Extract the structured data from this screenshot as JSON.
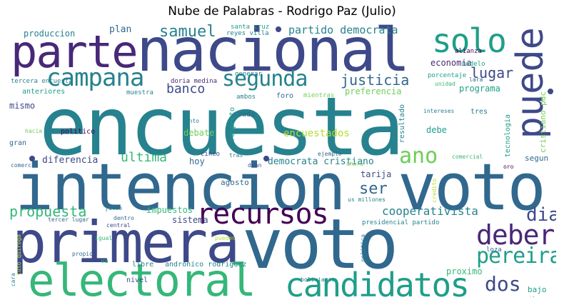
{
  "title": "Nube de Palabras - Rodrigo Paz (Julio)",
  "colors": {
    "dark_purple": "#440154",
    "purple": "#482878",
    "indigo": "#3e4989",
    "blue": "#31688e",
    "teal_blue": "#26828e",
    "teal": "#1f9e89",
    "green_teal": "#35b779",
    "green": "#6ece58",
    "lime": "#b5de2b",
    "yellow": "#fde725"
  },
  "words": [
    {
      "text": "encuesta",
      "color": "#26828e"
    },
    {
      "text": "intencion",
      "color": "#31688e"
    },
    {
      "text": "voto",
      "color": "#31688e"
    },
    {
      "text": "primera",
      "color": "#3e4989"
    },
    {
      "text": "voto",
      "color": "#31688e"
    },
    {
      "text": "nacional",
      "color": "#3e4989"
    },
    {
      "text": "parte",
      "color": "#482878"
    },
    {
      "text": "electoral",
      "color": "#35b779"
    },
    {
      "text": "candidatos",
      "color": "#1f9e89"
    },
    {
      "text": "puede",
      "color": "#3e4989"
    },
    {
      "text": "solo",
      "color": "#1f9e89"
    },
    {
      "text": "recursos",
      "color": "#440154"
    },
    {
      "text": "campana",
      "color": "#26828e"
    },
    {
      "text": "deber",
      "color": "#482878"
    },
    {
      "text": "segunda",
      "color": "#26828e"
    },
    {
      "text": "pereira",
      "color": "#1f9e89"
    },
    {
      "text": "ano",
      "color": "#6ece58"
    },
    {
      "text": "dos",
      "color": "#3e4989"
    },
    {
      "text": "dia",
      "color": "#3e4989"
    },
    {
      "text": "propuesta",
      "color": "#35b779"
    },
    {
      "text": "justicia",
      "color": "#31688e"
    },
    {
      "text": "samuel",
      "color": "#26828e"
    },
    {
      "text": "banco",
      "color": "#3e4989"
    },
    {
      "text": "lugar",
      "color": "#3e4989"
    },
    {
      "text": "ultima",
      "color": "#35b779"
    },
    {
      "text": "ser",
      "color": "#31688e"
    },
    {
      "text": "cooperativista",
      "color": "#26828e"
    },
    {
      "text": "partido democrata",
      "color": "#26828e"
    },
    {
      "text": "democrata cristiano",
      "color": "#26828e"
    },
    {
      "text": "encuestados",
      "color": "#b5de2b"
    },
    {
      "text": "preferencia",
      "color": "#6ece58"
    },
    {
      "text": "programa",
      "color": "#1f9e89"
    },
    {
      "text": "economia",
      "color": "#482878"
    },
    {
      "text": "produccion",
      "color": "#26828e"
    },
    {
      "text": "plan",
      "color": "#31688e"
    },
    {
      "text": "mismo",
      "color": "#3e4989"
    },
    {
      "text": "diferencia",
      "color": "#3e4989"
    },
    {
      "text": "hoy",
      "color": "#31688e"
    },
    {
      "text": "debate",
      "color": "#6ece58"
    },
    {
      "text": "impuestos",
      "color": "#35b779"
    },
    {
      "text": "sistema",
      "color": "#3e4989"
    },
    {
      "text": "agosto",
      "color": "#31688e"
    },
    {
      "text": "tarija",
      "color": "#3e4989"
    },
    {
      "text": "debe",
      "color": "#1f9e89"
    },
    {
      "text": "proximo",
      "color": "#35b779"
    },
    {
      "text": "bajo",
      "color": "#1f9e89"
    },
    {
      "text": "segun",
      "color": "#31688e"
    },
    {
      "text": "tres",
      "color": "#26828e"
    },
    {
      "text": "cristiano pdc",
      "color": "#6ece58"
    },
    {
      "text": "tecnologia",
      "color": "#1f9e89"
    },
    {
      "text": "resultado",
      "color": "#26828e"
    },
    {
      "text": "respecto",
      "color": "#1f9e89"
    },
    {
      "text": "rada",
      "color": "#31688e"
    },
    {
      "text": "ambos",
      "color": "#26828e"
    },
    {
      "text": "foro",
      "color": "#31688e"
    },
    {
      "text": "mientras",
      "color": "#6ece58"
    },
    {
      "text": "politico",
      "color": "#440154"
    },
    {
      "text": "anteriores",
      "color": "#1f9e89"
    },
    {
      "text": "tercera encuesta",
      "color": "#26828e"
    },
    {
      "text": "muestra",
      "color": "#26828e"
    },
    {
      "text": "doria medina",
      "color": "#482878"
    },
    {
      "text": "generar",
      "color": "#26828e"
    },
    {
      "text": "santa cruz",
      "color": "#1f9e89"
    },
    {
      "text": "reyes villa",
      "color": "#26828e"
    },
    {
      "text": "modelo",
      "color": "#1f9e89"
    },
    {
      "text": "alianza",
      "color": "#440154"
    },
    {
      "text": "porcentaje",
      "color": "#1f9e89"
    },
    {
      "text": "unidad",
      "color": "#35b779"
    },
    {
      "text": "lara",
      "color": "#31688e"
    },
    {
      "text": "intereses",
      "color": "#26828e"
    },
    {
      "text": "gran",
      "color": "#31688e"
    },
    {
      "text": "hacia",
      "color": "#6ece58"
    },
    {
      "text": "junto",
      "color": "#26828e"
    },
    {
      "text": "cinco",
      "color": "#3e4989"
    },
    {
      "text": "tras",
      "color": "#26828e"
    },
    {
      "text": "ejemplo",
      "color": "#31688e"
    },
    {
      "text": "ahora",
      "color": "#6ece58"
    },
    {
      "text": "dunn",
      "color": "#3e4989"
    },
    {
      "text": "comercio",
      "color": "#31688e"
    },
    {
      "text": "comercial",
      "color": "#35b779"
    },
    {
      "text": "credito",
      "color": "#b5de2b"
    },
    {
      "text": "oro",
      "color": "#440154"
    },
    {
      "text": "us millones",
      "color": "#26828e"
    },
    {
      "text": "julio",
      "color": "#26828e"
    },
    {
      "text": "dentro",
      "color": "#31688e"
    },
    {
      "text": "central",
      "color": "#3e4989"
    },
    {
      "text": "tercer lugar",
      "color": "#31688e"
    },
    {
      "text": "presidencial partido",
      "color": "#26828e"
    },
    {
      "text": "igual",
      "color": "#35b779"
    },
    {
      "text": "propio",
      "color": "#31688e"
    },
    {
      "text": "pueden",
      "color": "#b5de2b"
    },
    {
      "text": "va",
      "color": "#35b779"
    },
    {
      "text": "libre",
      "color": "#26828e"
    },
    {
      "text": "andronico rodriguez",
      "color": "#26828e"
    },
    {
      "text": "nivel",
      "color": "#3e4989"
    },
    {
      "text": "politica",
      "color": "#26828e"
    },
    {
      "text": "loza",
      "color": "#31688e"
    },
    {
      "text": "bolivianos",
      "color": "#26828e"
    },
    {
      "text": "problema",
      "color": "#3e4989"
    },
    {
      "text": "tuto quiroga",
      "color": "#b5de2b"
    },
    {
      "text": "cara",
      "color": "#26828e"
    }
  ]
}
